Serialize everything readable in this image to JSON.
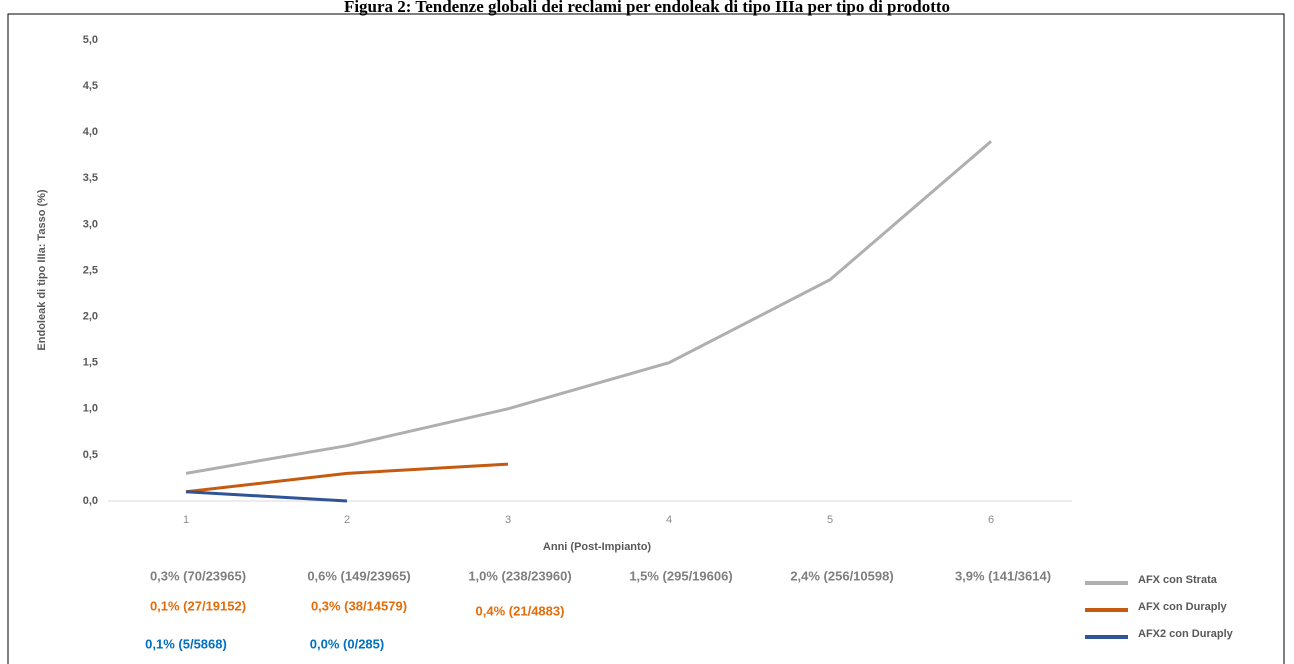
{
  "chart_data": {
    "type": "line",
    "title": "Figura 2: Tendenze globali dei reclami per endoleak di tipo IIIa per tipo di prodotto",
    "x_label": "Anni (Post-Impianto)",
    "y_label": "Endoleak di tipo IIIa: Tasso (%)",
    "categories": [
      "1",
      "2",
      "3",
      "4",
      "5",
      "6"
    ],
    "ylim": [
      0,
      5
    ],
    "yticks": [
      {
        "value": 0,
        "label": "0,0"
      },
      {
        "value": 0.5,
        "label": "0,5"
      },
      {
        "value": 1,
        "label": "1,0"
      },
      {
        "value": 1.5,
        "label": "1,5"
      },
      {
        "value": 2,
        "label": "2,0"
      },
      {
        "value": 2.5,
        "label": "2,5"
      },
      {
        "value": 3,
        "label": "3,0"
      },
      {
        "value": 3.5,
        "label": "3,5"
      },
      {
        "value": 4,
        "label": "4,0"
      },
      {
        "value": 4.5,
        "label": "4,5"
      },
      {
        "value": 5,
        "label": "5,0"
      }
    ],
    "legend": "right",
    "series": [
      {
        "name": "AFX con Strata",
        "color": "#b0aeae",
        "label_color": "#7f7f7f",
        "values": [
          0.3,
          0.6,
          1.0,
          1.5,
          2.4,
          3.9
        ],
        "value_labels": [
          "0,3% (70/23965)",
          "0,6% (149/23965)",
          "1,0% (238/23960)",
          "1,5% (295/19606)",
          "2,4% (256/10598)",
          "3,9% (141/3614)"
        ]
      },
      {
        "name": "AFX con Duraply",
        "color": "#c55a11",
        "label_color": "#e46c0a",
        "values": [
          0.1,
          0.3,
          0.4,
          null,
          null,
          null
        ],
        "value_labels": [
          "0,1% (27/19152)",
          "0,3% (38/14579)",
          "0,4% (21/4883)",
          null,
          null,
          null
        ]
      },
      {
        "name": "AFX2 con Duraply",
        "color": "#2f5597",
        "label_color": "#0070c0",
        "values": [
          0.1,
          0.0,
          null,
          null,
          null,
          null
        ],
        "value_labels": [
          "0,1% (5/5868)",
          "0,0% (0/285)",
          null,
          null,
          null,
          null
        ]
      }
    ]
  }
}
